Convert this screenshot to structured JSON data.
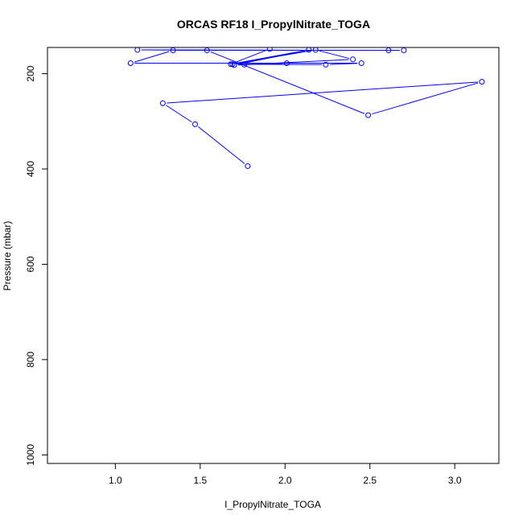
{
  "chart_data": {
    "type": "line",
    "title": "ORCAS RF18 I_PropylNitrate_TOGA",
    "xlabel": "I_PropylNitrate_TOGA",
    "ylabel": "Pressure (mbar)",
    "xlim": [
      0.6,
      3.26
    ],
    "ylim": [
      1018,
      145
    ],
    "y_reversed": true,
    "x_ticks": [
      1.0,
      1.5,
      2.0,
      2.5,
      3.0
    ],
    "x_tick_labels": [
      "1.0",
      "1.5",
      "2.0",
      "2.5",
      "3.0"
    ],
    "y_ticks": [
      200,
      400,
      600,
      800,
      1000
    ],
    "y_tick_labels": [
      "200",
      "400",
      "600",
      "800",
      "1000"
    ],
    "grid": false,
    "legend": "none",
    "series_color": "#0000ff",
    "series": [
      {
        "x": [
          1.78,
          1.47,
          1.28,
          3.16,
          2.49,
          1.54,
          1.13,
          2.7,
          2.61,
          1.34,
          1.09,
          2.45,
          2.24,
          1.69,
          2.18,
          2.4,
          1.76,
          2.01,
          1.7,
          2.14,
          1.68,
          1.91
        ],
        "y": [
          394,
          306,
          262,
          217,
          287,
          151,
          150,
          151,
          151,
          151,
          178,
          178,
          181,
          180,
          150,
          170,
          181,
          178,
          182,
          150,
          180,
          148
        ]
      }
    ]
  }
}
